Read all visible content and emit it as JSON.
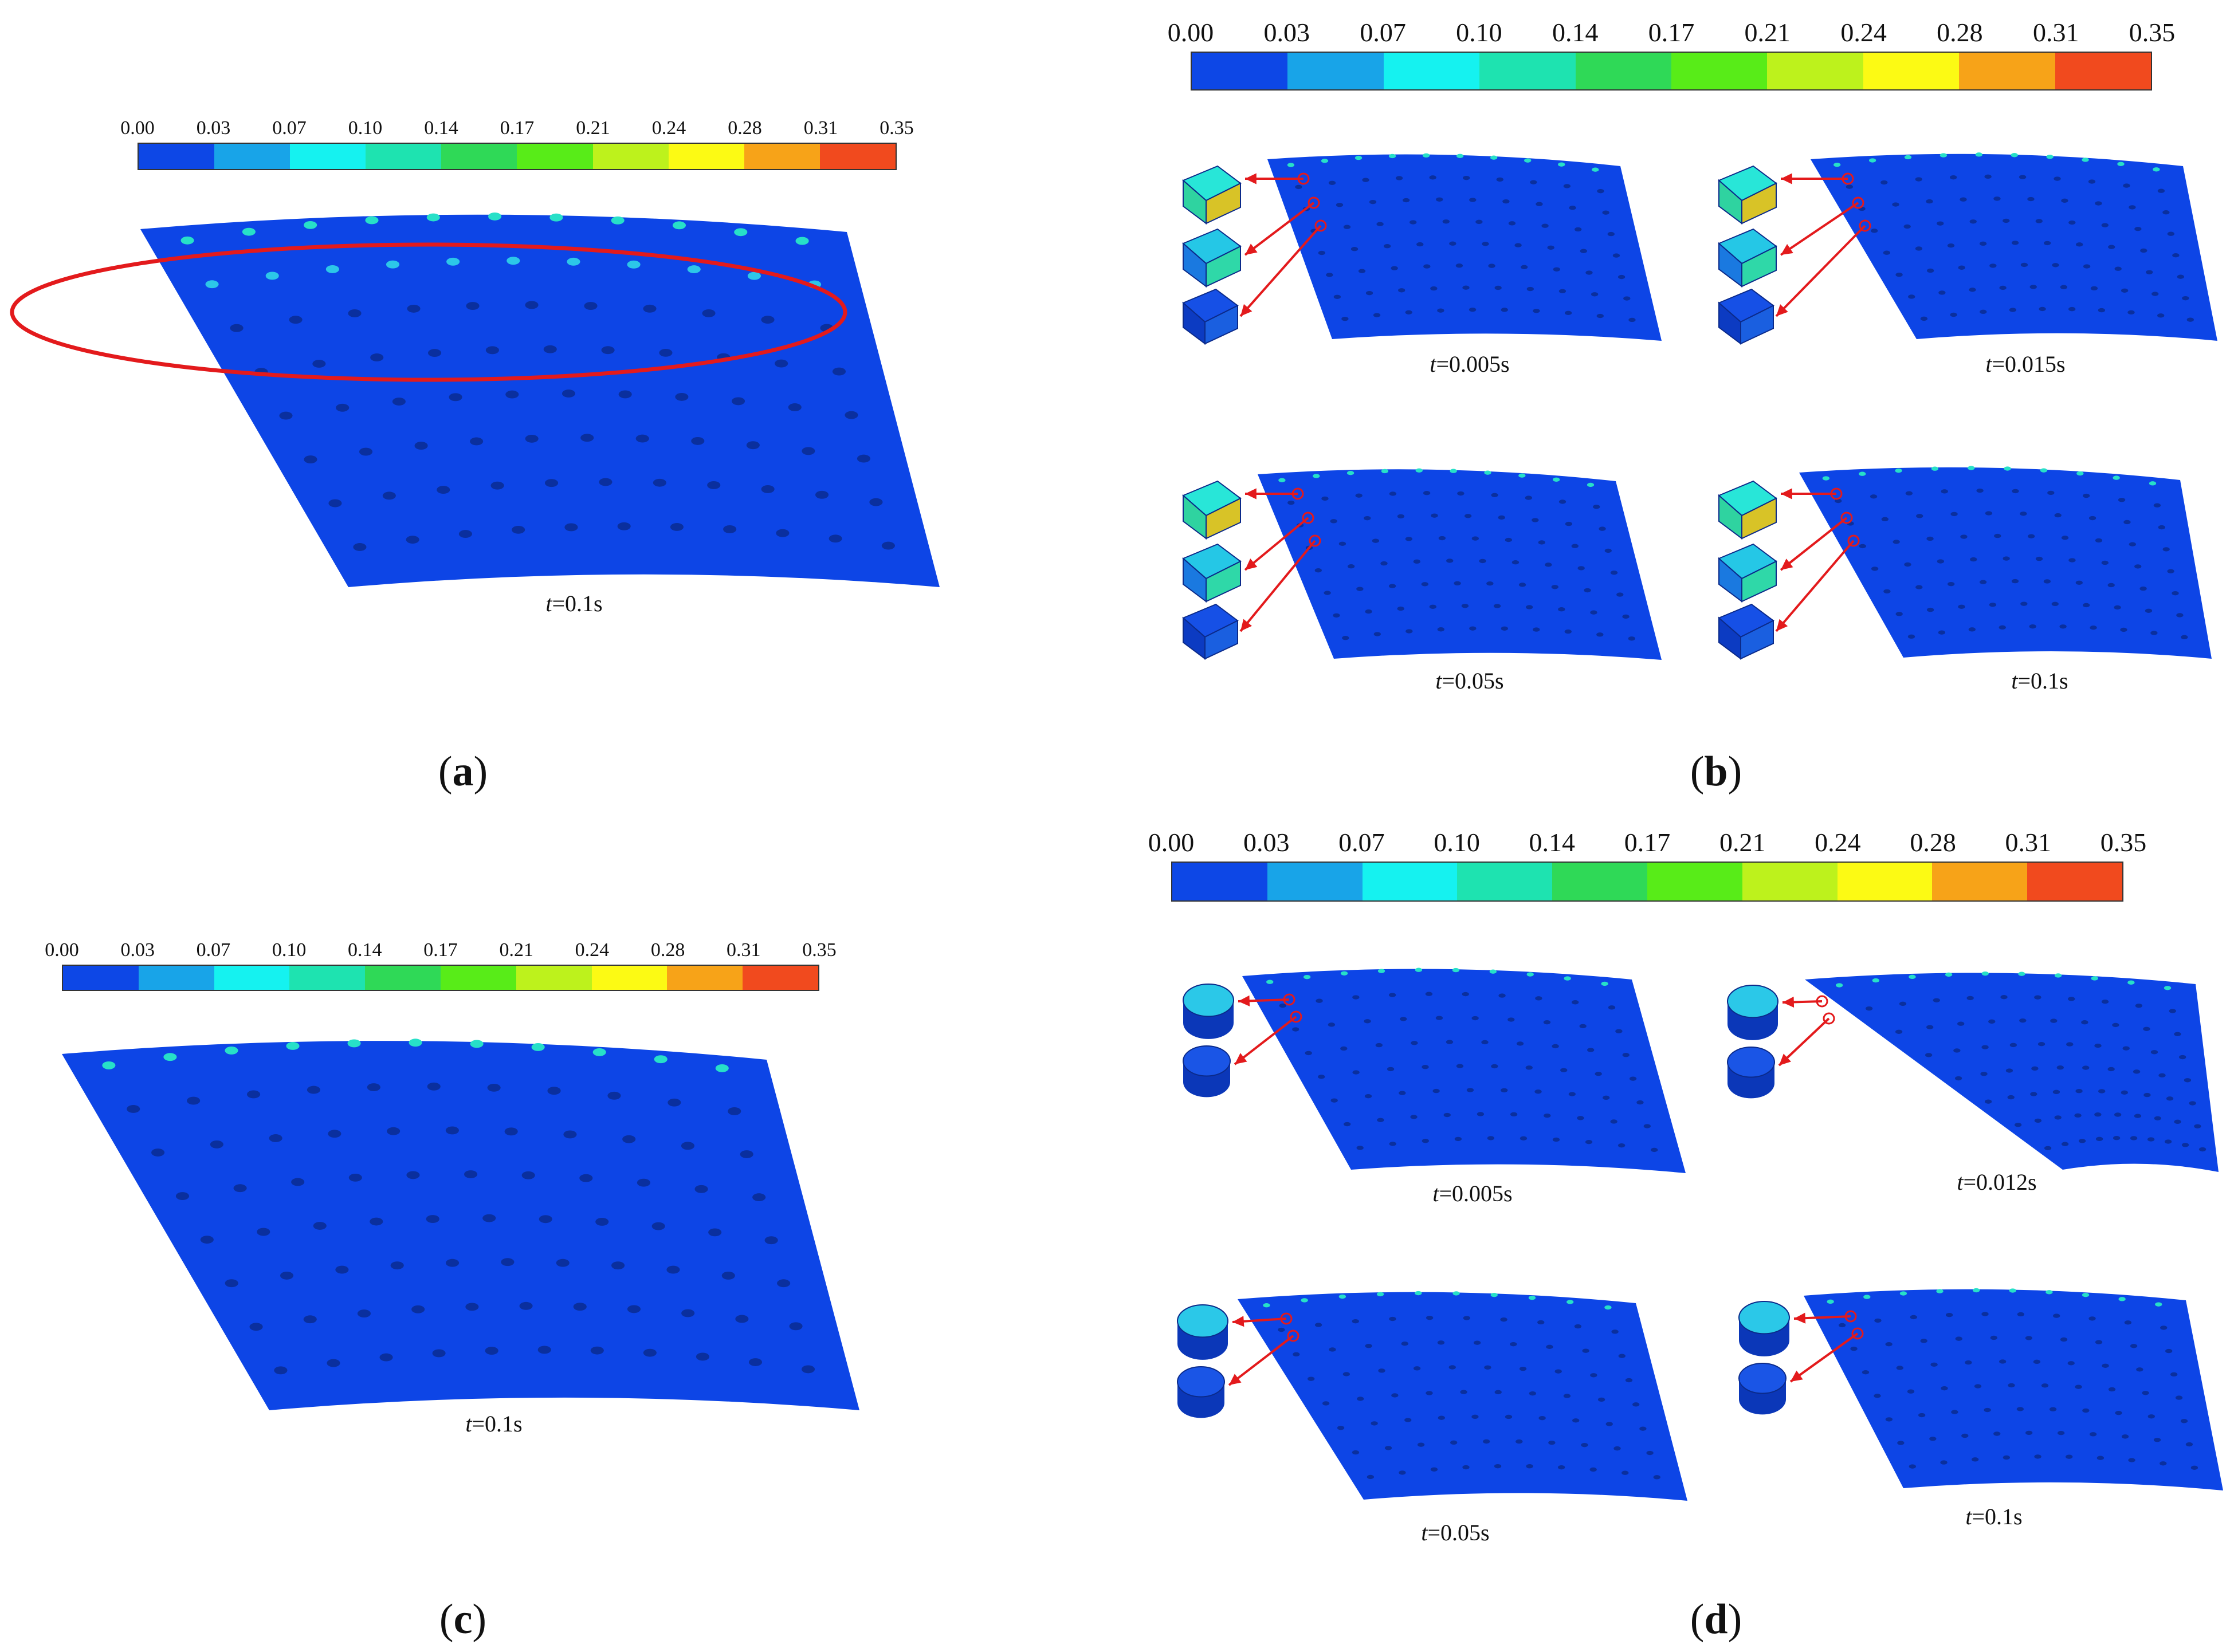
{
  "figure": {
    "colorbar": {
      "ticks": [
        "0.00",
        "0.03",
        "0.07",
        "0.10",
        "0.14",
        "0.17",
        "0.21",
        "0.24",
        "0.28",
        "0.31",
        "0.35"
      ],
      "colors": [
        "#0d47e6",
        "#18a4e8",
        "#15f2f0",
        "#1ee3b0",
        "#2fd957",
        "#58ec18",
        "#bdf21c",
        "#fcfa14",
        "#f7a318",
        "#f14a1e"
      ]
    },
    "plate_color": "#0d45e6",
    "panels": {
      "a": {
        "label": "a",
        "time": {
          "var": "t",
          "rest": "=0.1s"
        }
      },
      "b": {
        "label": "b",
        "subplots": [
          {
            "var": "t",
            "rest": "=0.005s"
          },
          {
            "var": "t",
            "rest": "=0.015s"
          },
          {
            "var": "t",
            "rest": "=0.05s"
          },
          {
            "var": "t",
            "rest": "=0.1s"
          }
        ]
      },
      "c": {
        "label": "c",
        "time": {
          "var": "t",
          "rest": "=0.1s"
        }
      },
      "d": {
        "label": "d",
        "subplots": [
          {
            "var": "t",
            "rest": "=0.005s"
          },
          {
            "var": "t",
            "rest": "=0.012s"
          },
          {
            "var": "t",
            "rest": "=0.05s"
          },
          {
            "var": "t",
            "rest": "=0.1s"
          }
        ]
      }
    },
    "annotation_color": "#e31a1c"
  }
}
